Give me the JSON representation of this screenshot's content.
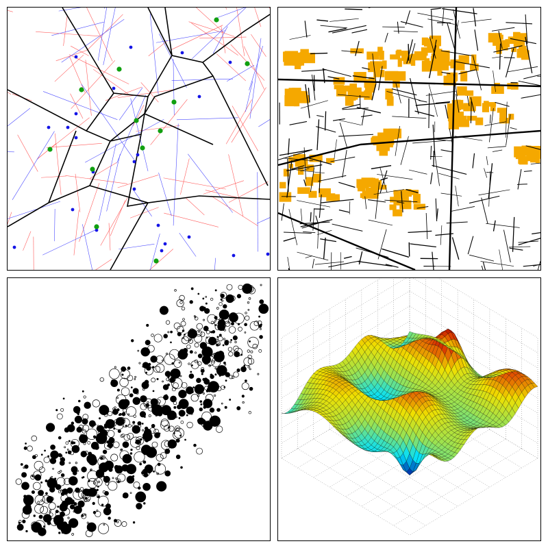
{
  "figure": {
    "panels": [
      {
        "id": "voronoi",
        "kind": "voronoi-network"
      },
      {
        "id": "map",
        "kind": "street-map-with-highlighted-areas"
      },
      {
        "id": "bubbles",
        "kind": "proportional-circle-map"
      },
      {
        "id": "surface",
        "kind": "3d-surface-plot"
      }
    ],
    "colors": {
      "border": "#000000",
      "voronoi_edges": "#000000",
      "red_network": "#ff5a5a",
      "blue_network": "#4a4aff",
      "blue_points": "#1414e6",
      "green_points": "#10a010",
      "streets": "#000000",
      "highlight_areas": "#f5a800",
      "circle_fill": "#000000",
      "circle_outline": "#000000",
      "surface_colormap": [
        "#00008f",
        "#00e0ff",
        "#9de24f",
        "#f0e000",
        "#e04000",
        "#a00000"
      ],
      "grid": "#7a7a7a"
    }
  }
}
